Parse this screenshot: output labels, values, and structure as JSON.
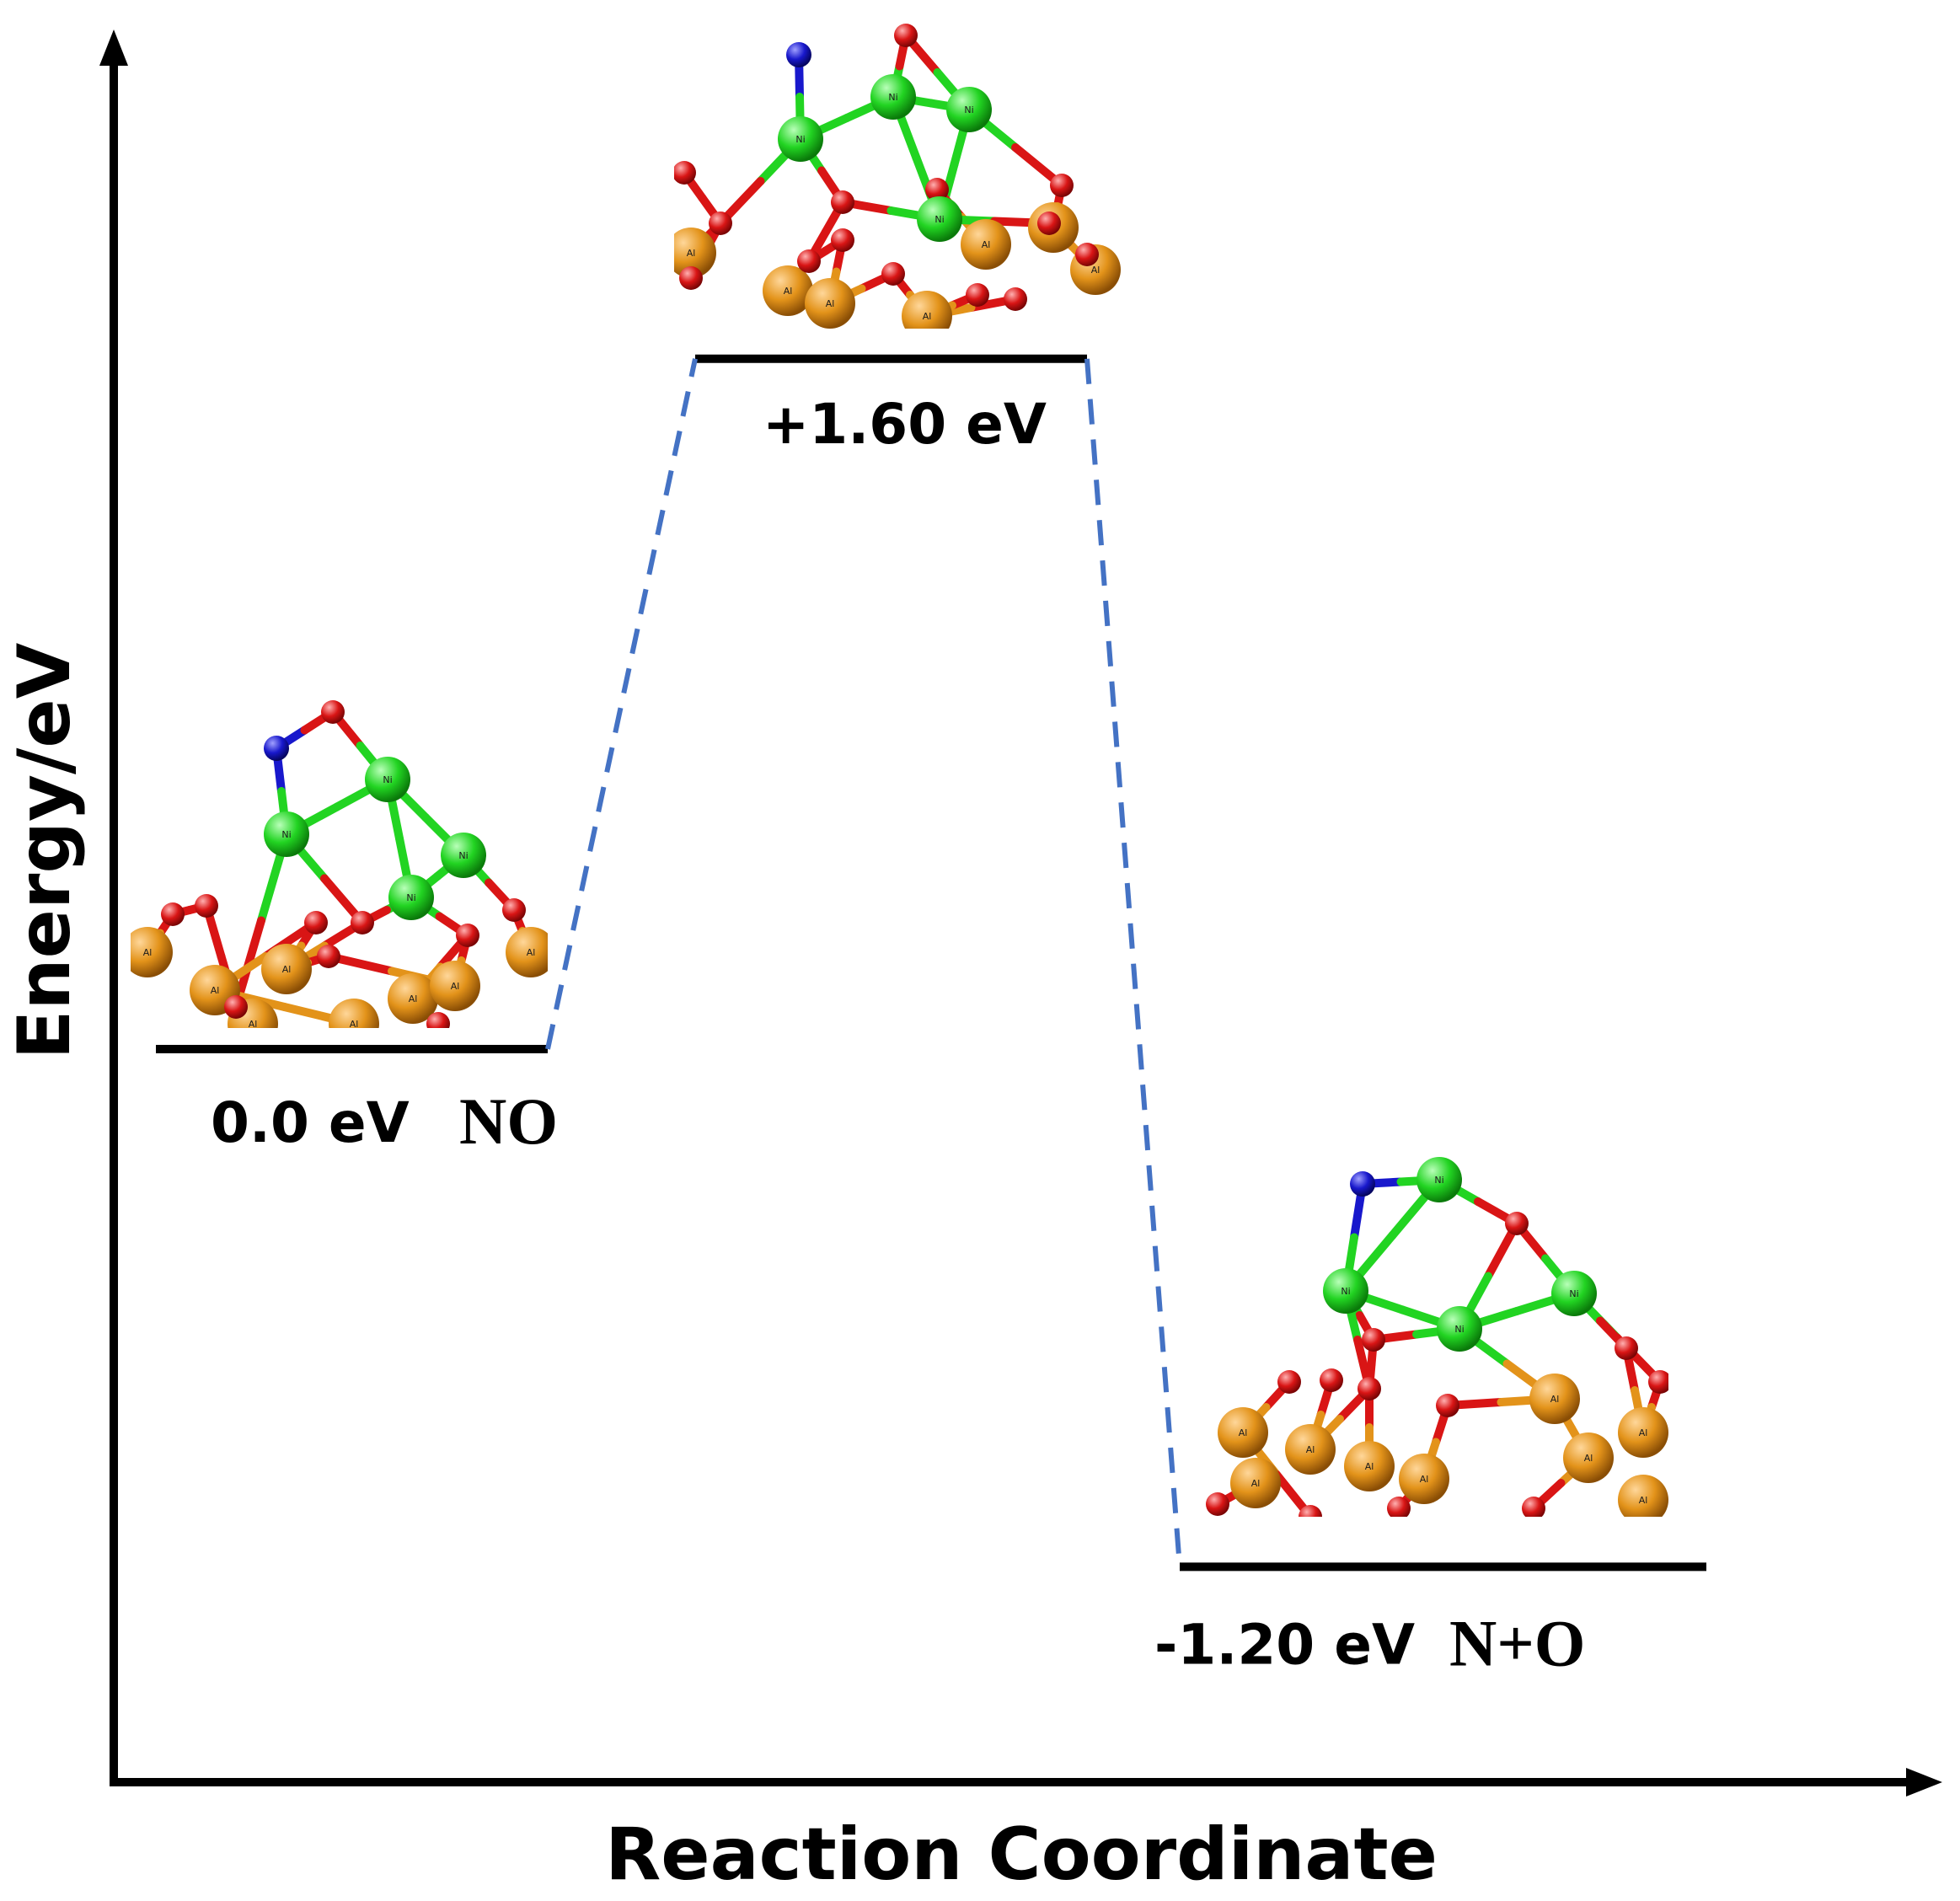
{
  "chart_data": {
    "type": "energy-profile",
    "xlabel": "Reaction Coordinate",
    "ylabel": "Energy/eV",
    "ylim": [
      -1.6,
      2.1
    ],
    "levels": [
      {
        "name": "initial",
        "energy": 0.0,
        "energy_label": "0.0 eV",
        "species": "NO"
      },
      {
        "name": "transition",
        "energy": 1.6,
        "energy_label": "+1.60 eV",
        "species": ""
      },
      {
        "name": "final",
        "energy": -1.2,
        "energy_label": "-1.20 eV",
        "species": "N+O"
      }
    ],
    "connector_color": "#4472c4",
    "level_color": "#000000"
  },
  "structures": {
    "atom_colors": {
      "ni": "#22d422",
      "o": "#d91515",
      "n": "#1818cc",
      "al": "#e3931a"
    },
    "atom_labels": {
      "ni": "Ni",
      "al": "Al"
    }
  }
}
